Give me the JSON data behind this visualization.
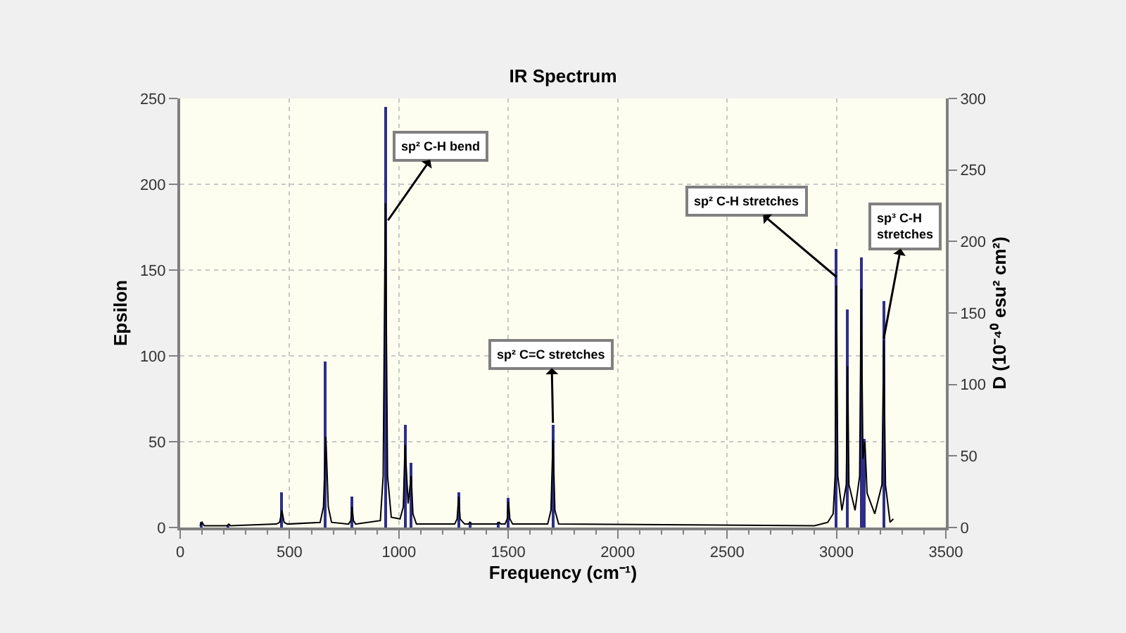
{
  "chart_data": {
    "type": "line",
    "title": "IR Spectrum",
    "xlabel": "Frequency (cm⁻¹)",
    "ylabel": "Epsilon",
    "y2label": "D (10⁻⁴⁰ esu² cm²)",
    "xlim": [
      0,
      3500
    ],
    "xticks": [
      0,
      500,
      1000,
      1500,
      2000,
      2500,
      3000,
      3500
    ],
    "ylim": [
      0,
      250
    ],
    "yticks": [
      0,
      50,
      100,
      150,
      200,
      250
    ],
    "y2lim": [
      0,
      300
    ],
    "y2ticks": [
      0,
      50,
      100,
      150,
      200,
      250,
      300
    ],
    "grid": true,
    "series": [
      {
        "type": "bar",
        "axis": "y2",
        "color": "#2e2e8a",
        "x": [
          100,
          222,
          465,
          666,
          786,
          938,
          1028,
          1056,
          1273,
          1324,
          1458,
          1501,
          1704,
          3000,
          3051,
          3113,
          3130,
          3216
        ],
        "values": [
          4,
          2,
          25,
          116,
          22,
          294,
          72,
          45,
          25,
          4,
          4,
          21,
          72,
          195,
          152,
          189,
          62,
          158
        ]
      },
      {
        "color": "#000000",
        "x": [
          90,
          100,
          110,
          215,
          222,
          230,
          440,
          455,
          465,
          475,
          490,
          640,
          655,
          666,
          677,
          692,
          770,
          780,
          786,
          792,
          802,
          915,
          928,
          938,
          948,
          965,
          1005,
          1020,
          1028,
          1042,
          1056,
          1064,
          1080,
          1255,
          1266,
          1273,
          1280,
          1300,
          1318,
          1324,
          1330,
          1450,
          1458,
          1466,
          1485,
          1495,
          1501,
          1507,
          1520,
          1680,
          1695,
          1704,
          1713,
          1730,
          2900,
          2960,
          2985,
          2994,
          3000,
          3006,
          3025,
          3045,
          3051,
          3057,
          3085,
          3106,
          3113,
          3121,
          3130,
          3140,
          3175,
          3208,
          3216,
          3224,
          3245,
          3260
        ],
        "values": [
          1,
          3,
          1,
          1,
          2,
          1,
          2,
          3,
          10,
          3,
          2,
          3,
          12,
          53,
          12,
          3,
          2,
          4,
          12,
          4,
          2,
          4,
          30,
          189,
          30,
          6,
          5,
          12,
          48,
          14,
          30,
          8,
          2,
          2,
          5,
          18,
          5,
          2,
          2,
          3,
          2,
          2,
          3,
          2,
          2,
          5,
          15,
          5,
          2,
          2,
          10,
          51,
          10,
          2,
          1,
          3,
          8,
          30,
          141,
          30,
          10,
          25,
          94,
          25,
          10,
          30,
          139,
          40,
          50,
          20,
          8,
          25,
          109,
          25,
          3,
          5
        ]
      }
    ],
    "annotations": [
      {
        "text": "sp² C-H bend",
        "x": 950,
        "y": 179
      },
      {
        "text": "sp² C=C stretches",
        "x": 1704,
        "y": 61
      },
      {
        "text": "sp² C-H stretches",
        "x": 3000,
        "y": 146
      },
      {
        "text": "sp³ C-H\nstretches",
        "x": 3216,
        "y": 110
      }
    ]
  }
}
